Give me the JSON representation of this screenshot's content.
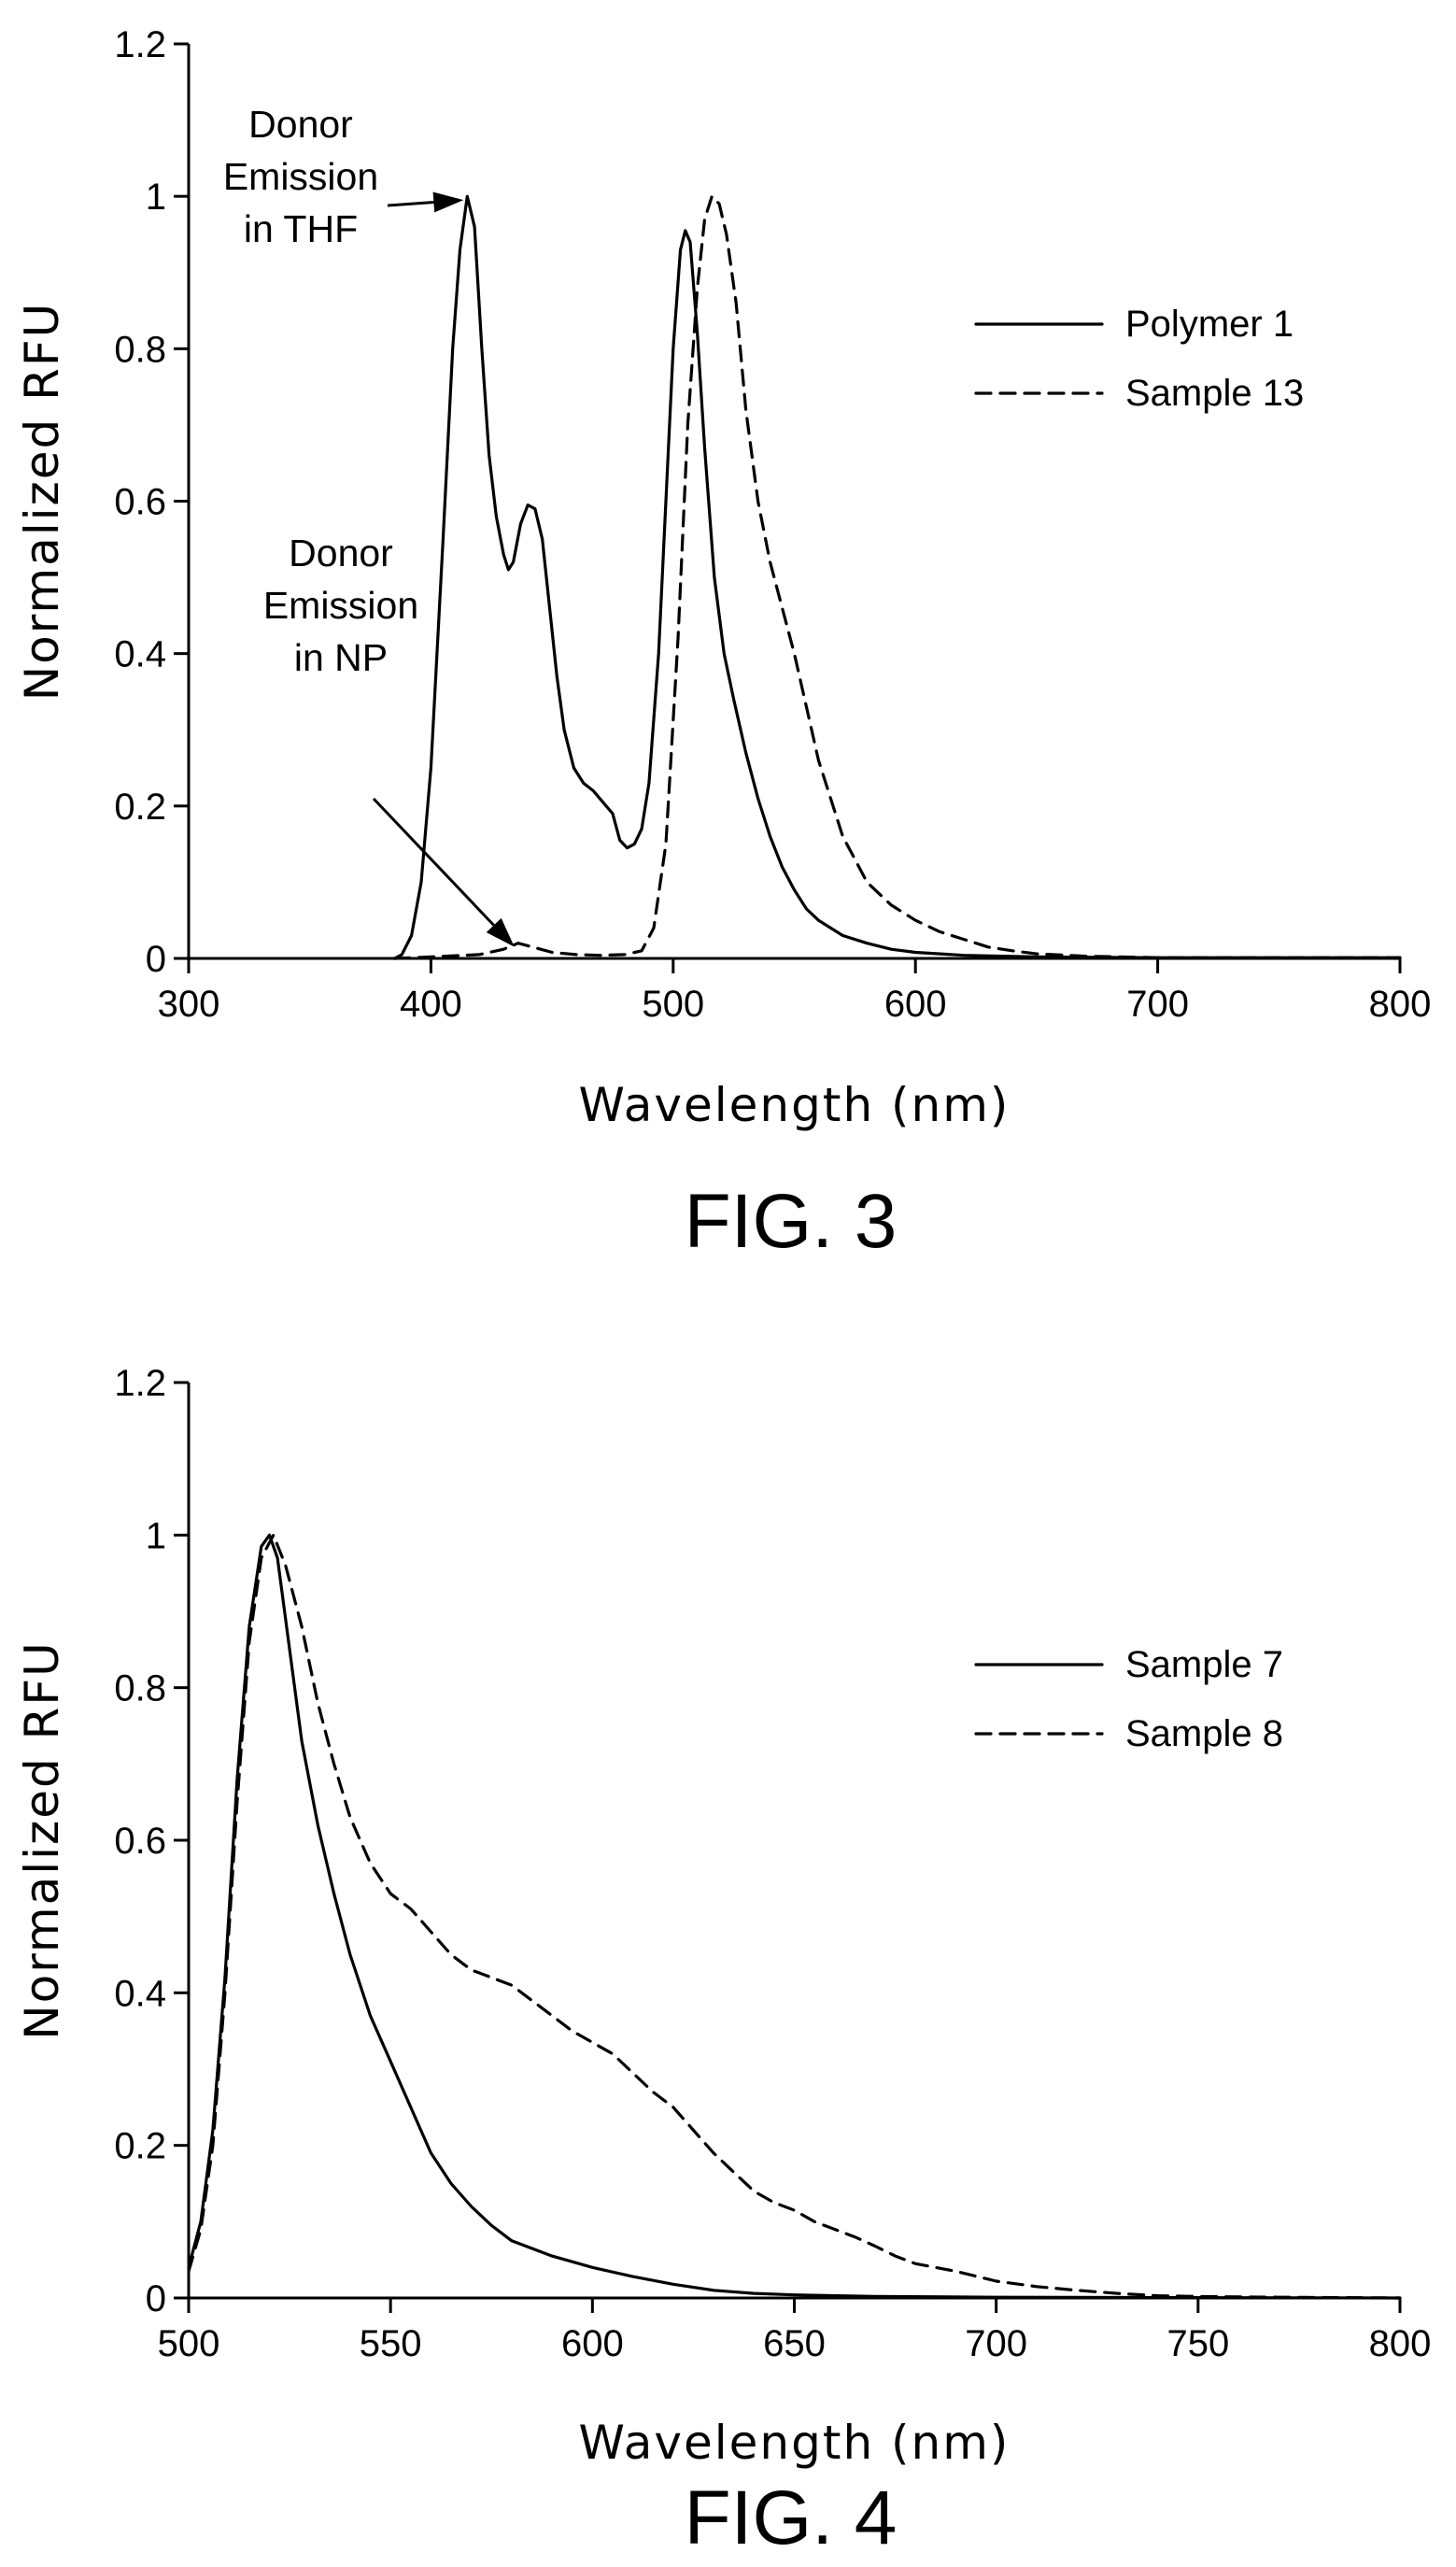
{
  "chart_data": [
    {
      "type": "line",
      "figure_label": "FIG. 3",
      "xlabel": "Wavelength (nm)",
      "ylabel": "Normalized RFU",
      "xlim": [
        300,
        800
      ],
      "ylim": [
        0,
        1.2
      ],
      "xticks": [
        300,
        400,
        500,
        600,
        700,
        800
      ],
      "yticks": [
        0,
        0.2,
        0.4,
        0.6,
        0.8,
        1,
        1.2
      ],
      "legend_position": "top-right",
      "series": [
        {
          "name": "Polymer 1",
          "style": "solid",
          "points": [
            [
              385,
              0
            ],
            [
              388,
              0.005
            ],
            [
              392,
              0.03
            ],
            [
              396,
              0.1
            ],
            [
              400,
              0.25
            ],
            [
              405,
              0.55
            ],
            [
              409,
              0.8
            ],
            [
              412,
              0.93
            ],
            [
              415,
              1.0
            ],
            [
              418,
              0.96
            ],
            [
              421,
              0.8
            ],
            [
              424,
              0.66
            ],
            [
              427,
              0.58
            ],
            [
              430,
              0.53
            ],
            [
              432,
              0.51
            ],
            [
              434,
              0.52
            ],
            [
              437,
              0.57
            ],
            [
              440,
              0.595
            ],
            [
              443,
              0.59
            ],
            [
              446,
              0.55
            ],
            [
              449,
              0.46
            ],
            [
              452,
              0.37
            ],
            [
              455,
              0.3
            ],
            [
              459,
              0.25
            ],
            [
              463,
              0.23
            ],
            [
              467,
              0.22
            ],
            [
              471,
              0.205
            ],
            [
              475,
              0.19
            ],
            [
              478,
              0.155
            ],
            [
              481,
              0.145
            ],
            [
              484,
              0.15
            ],
            [
              487,
              0.17
            ],
            [
              490,
              0.23
            ],
            [
              494,
              0.4
            ],
            [
              497,
              0.6
            ],
            [
              500,
              0.8
            ],
            [
              503,
              0.93
            ],
            [
              505,
              0.955
            ],
            [
              507,
              0.94
            ],
            [
              510,
              0.82
            ],
            [
              513,
              0.67
            ],
            [
              517,
              0.5
            ],
            [
              521,
              0.4
            ],
            [
              525,
              0.34
            ],
            [
              530,
              0.27
            ],
            [
              535,
              0.21
            ],
            [
              540,
              0.16
            ],
            [
              545,
              0.12
            ],
            [
              550,
              0.09
            ],
            [
              555,
              0.065
            ],
            [
              560,
              0.05
            ],
            [
              565,
              0.04
            ],
            [
              570,
              0.03
            ],
            [
              580,
              0.02
            ],
            [
              590,
              0.012
            ],
            [
              600,
              0.008
            ],
            [
              620,
              0.004
            ],
            [
              650,
              0.002
            ],
            [
              700,
              0.001
            ],
            [
              800,
              0.001
            ]
          ]
        },
        {
          "name": "Sample 13",
          "style": "dashed",
          "points": [
            [
              385,
              0
            ],
            [
              400,
              0.002
            ],
            [
              420,
              0.005
            ],
            [
              430,
              0.012
            ],
            [
              436,
              0.02
            ],
            [
              442,
              0.015
            ],
            [
              450,
              0.008
            ],
            [
              460,
              0.005
            ],
            [
              470,
              0.004
            ],
            [
              480,
              0.005
            ],
            [
              487,
              0.01
            ],
            [
              492,
              0.04
            ],
            [
              497,
              0.15
            ],
            [
              502,
              0.42
            ],
            [
              506,
              0.7
            ],
            [
              510,
              0.88
            ],
            [
              513,
              0.97
            ],
            [
              516,
              1.0
            ],
            [
              519,
              0.99
            ],
            [
              522,
              0.95
            ],
            [
              526,
              0.86
            ],
            [
              530,
              0.72
            ],
            [
              535,
              0.6
            ],
            [
              540,
              0.52
            ],
            [
              545,
              0.46
            ],
            [
              550,
              0.4
            ],
            [
              555,
              0.33
            ],
            [
              560,
              0.26
            ],
            [
              565,
              0.21
            ],
            [
              570,
              0.16
            ],
            [
              575,
              0.13
            ],
            [
              580,
              0.1
            ],
            [
              590,
              0.07
            ],
            [
              600,
              0.05
            ],
            [
              610,
              0.035
            ],
            [
              620,
              0.025
            ],
            [
              630,
              0.015
            ],
            [
              640,
              0.01
            ],
            [
              650,
              0.006
            ],
            [
              670,
              0.003
            ],
            [
              700,
              0.001
            ],
            [
              800,
              0.001
            ]
          ]
        }
      ],
      "annotations": [
        {
          "lines": [
            "Donor",
            "Emission",
            "in THF"
          ],
          "points_to": [
            415,
            1.0
          ]
        },
        {
          "lines": [
            "Donor",
            "Emission",
            "in NP"
          ],
          "points_to": [
            436,
            0.02
          ]
        }
      ]
    },
    {
      "type": "line",
      "figure_label": "FIG. 4",
      "xlabel": "Wavelength (nm)",
      "ylabel": "Normalized RFU",
      "xlim": [
        500,
        800
      ],
      "ylim": [
        0,
        1.2
      ],
      "xticks": [
        500,
        550,
        600,
        650,
        700,
        750,
        800
      ],
      "yticks": [
        0,
        0.2,
        0.4,
        0.6,
        0.8,
        1,
        1.2
      ],
      "legend_position": "top-right",
      "series": [
        {
          "name": "Sample 7",
          "style": "solid",
          "points": [
            [
              500,
              0.04
            ],
            [
              503,
              0.1
            ],
            [
              506,
              0.22
            ],
            [
              509,
              0.42
            ],
            [
              512,
              0.68
            ],
            [
              515,
              0.88
            ],
            [
              518,
              0.985
            ],
            [
              520,
              1.0
            ],
            [
              522,
              0.97
            ],
            [
              525,
              0.85
            ],
            [
              528,
              0.73
            ],
            [
              532,
              0.62
            ],
            [
              536,
              0.53
            ],
            [
              540,
              0.45
            ],
            [
              545,
              0.37
            ],
            [
              550,
              0.31
            ],
            [
              555,
              0.25
            ],
            [
              560,
              0.19
            ],
            [
              565,
              0.15
            ],
            [
              570,
              0.12
            ],
            [
              575,
              0.095
            ],
            [
              580,
              0.075
            ],
            [
              590,
              0.055
            ],
            [
              600,
              0.04
            ],
            [
              610,
              0.028
            ],
            [
              620,
              0.018
            ],
            [
              630,
              0.01
            ],
            [
              640,
              0.006
            ],
            [
              650,
              0.004
            ],
            [
              670,
              0.002
            ],
            [
              700,
              0.001
            ],
            [
              800,
              0.0
            ]
          ]
        },
        {
          "name": "Sample 8",
          "style": "dashed",
          "points": [
            [
              500,
              0.035
            ],
            [
              503,
              0.09
            ],
            [
              506,
              0.2
            ],
            [
              509,
              0.4
            ],
            [
              512,
              0.65
            ],
            [
              515,
              0.86
            ],
            [
              518,
              0.97
            ],
            [
              521,
              1.0
            ],
            [
              524,
              0.96
            ],
            [
              528,
              0.88
            ],
            [
              532,
              0.78
            ],
            [
              536,
              0.7
            ],
            [
              540,
              0.63
            ],
            [
              545,
              0.57
            ],
            [
              550,
              0.53
            ],
            [
              555,
              0.51
            ],
            [
              560,
              0.48
            ],
            [
              565,
              0.45
            ],
            [
              570,
              0.43
            ],
            [
              575,
              0.42
            ],
            [
              580,
              0.41
            ],
            [
              585,
              0.39
            ],
            [
              590,
              0.37
            ],
            [
              595,
              0.35
            ],
            [
              600,
              0.335
            ],
            [
              605,
              0.32
            ],
            [
              610,
              0.295
            ],
            [
              615,
              0.27
            ],
            [
              620,
              0.25
            ],
            [
              625,
              0.22
            ],
            [
              630,
              0.19
            ],
            [
              635,
              0.165
            ],
            [
              640,
              0.14
            ],
            [
              645,
              0.125
            ],
            [
              650,
              0.115
            ],
            [
              655,
              0.1
            ],
            [
              660,
              0.09
            ],
            [
              665,
              0.08
            ],
            [
              670,
              0.068
            ],
            [
              675,
              0.055
            ],
            [
              680,
              0.045
            ],
            [
              690,
              0.035
            ],
            [
              700,
              0.022
            ],
            [
              710,
              0.015
            ],
            [
              720,
              0.01
            ],
            [
              730,
              0.006
            ],
            [
              740,
              0.003
            ],
            [
              750,
              0.002
            ],
            [
              770,
              0.001
            ],
            [
              800,
              0.0
            ]
          ]
        }
      ],
      "annotations": []
    }
  ]
}
